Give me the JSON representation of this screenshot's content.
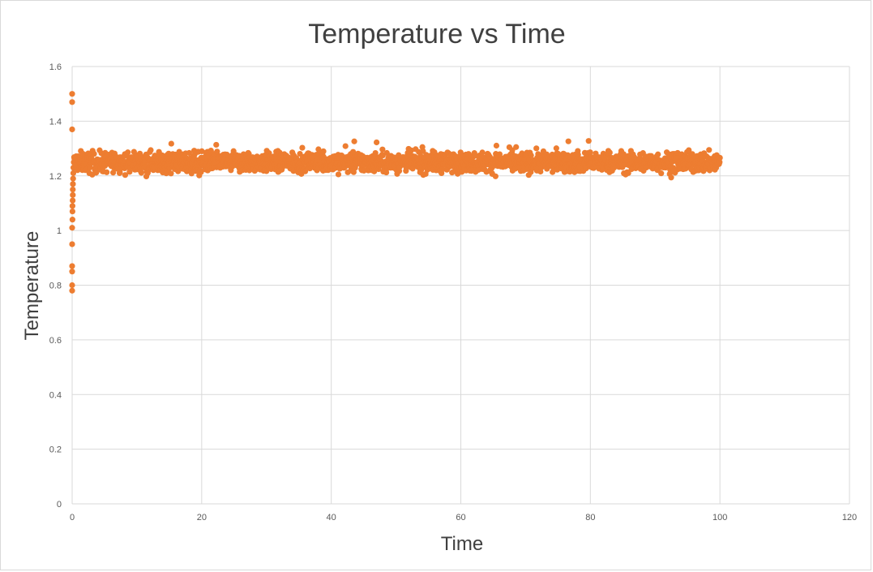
{
  "chart_data": {
    "type": "scatter",
    "title": "Temperature vs Time",
    "xlabel": "Time",
    "ylabel": "Temperature",
    "xlim": [
      0,
      120
    ],
    "ylim": [
      0,
      1.6
    ],
    "x_ticks": [
      0,
      20,
      40,
      60,
      80,
      100,
      120
    ],
    "y_ticks": [
      0,
      0.2,
      0.4,
      0.6,
      0.8,
      1,
      1.2,
      1.4,
      1.6
    ],
    "grid": true,
    "legend": "none",
    "series": [
      {
        "color": "#ed7d31",
        "startup_points": [
          [
            0,
            1.5
          ],
          [
            0,
            1.47
          ],
          [
            0,
            1.37
          ],
          [
            0,
            0.78
          ],
          [
            0,
            0.8
          ],
          [
            0,
            0.85
          ],
          [
            0,
            0.87
          ],
          [
            0,
            0.95
          ],
          [
            0,
            1.01
          ],
          [
            0.05,
            1.04
          ],
          [
            0.05,
            1.07
          ],
          [
            0.05,
            1.09
          ],
          [
            0.08,
            1.11
          ],
          [
            0.1,
            1.13
          ],
          [
            0.1,
            1.15
          ],
          [
            0.12,
            1.17
          ],
          [
            0.15,
            1.19
          ],
          [
            0.18,
            1.21
          ],
          [
            0.2,
            1.23
          ],
          [
            0.25,
            1.25
          ]
        ],
        "steady_state": {
          "x_range": [
            0.3,
            100
          ],
          "mean": 1.25,
          "band": [
            1.19,
            1.33
          ]
        }
      }
    ]
  }
}
